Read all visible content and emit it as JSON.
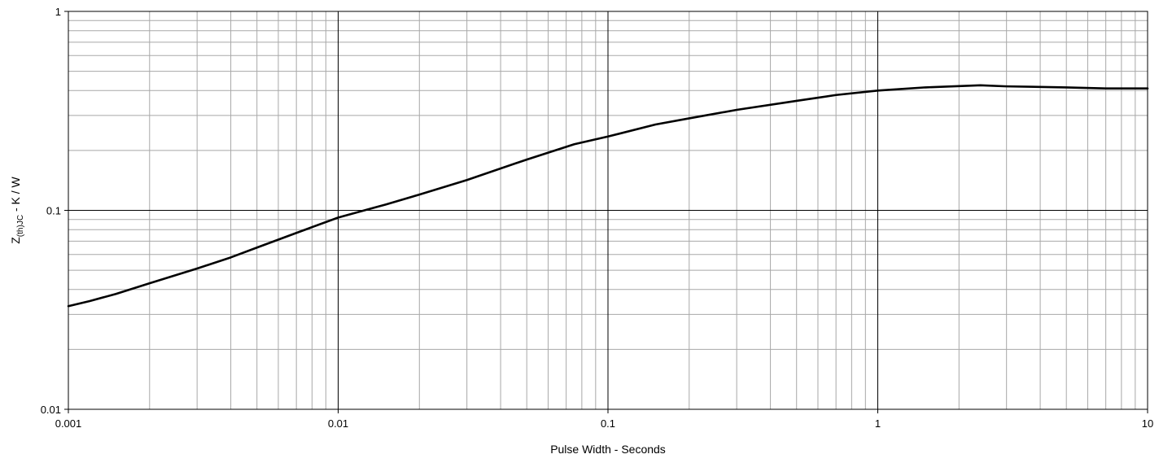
{
  "chart_data": {
    "type": "line",
    "title": "",
    "xlabel": "Pulse Width - Seconds",
    "ylabel": "Z(th)JC - K / W",
    "ylabel_parts": {
      "main": "Z",
      "sub": "(th)JC",
      "rest": " - K / W"
    },
    "x_scale": "log",
    "y_scale": "log",
    "xlim": [
      0.001,
      10
    ],
    "ylim": [
      0.01,
      1
    ],
    "x_ticks": [
      "0.001",
      "0.01",
      "0.1",
      "1",
      "10"
    ],
    "y_ticks": [
      "0.01",
      "0.1",
      "1"
    ],
    "grid": true,
    "legend": "none",
    "series": [
      {
        "color": "#000000",
        "points": [
          [
            0.001,
            0.033
          ],
          [
            0.0012,
            0.035
          ],
          [
            0.0015,
            0.038
          ],
          [
            0.002,
            0.043
          ],
          [
            0.003,
            0.051
          ],
          [
            0.004,
            0.058
          ],
          [
            0.005,
            0.065
          ],
          [
            0.007,
            0.077
          ],
          [
            0.01,
            0.092
          ],
          [
            0.015,
            0.107
          ],
          [
            0.02,
            0.12
          ],
          [
            0.03,
            0.142
          ],
          [
            0.05,
            0.18
          ],
          [
            0.075,
            0.215
          ],
          [
            0.1,
            0.235
          ],
          [
            0.15,
            0.27
          ],
          [
            0.2,
            0.29
          ],
          [
            0.3,
            0.32
          ],
          [
            0.5,
            0.355
          ],
          [
            0.7,
            0.38
          ],
          [
            1,
            0.4
          ],
          [
            1.5,
            0.415
          ],
          [
            2.4,
            0.425
          ],
          [
            3,
            0.42
          ],
          [
            5,
            0.415
          ],
          [
            7,
            0.41
          ],
          [
            10,
            0.41
          ]
        ]
      }
    ]
  }
}
